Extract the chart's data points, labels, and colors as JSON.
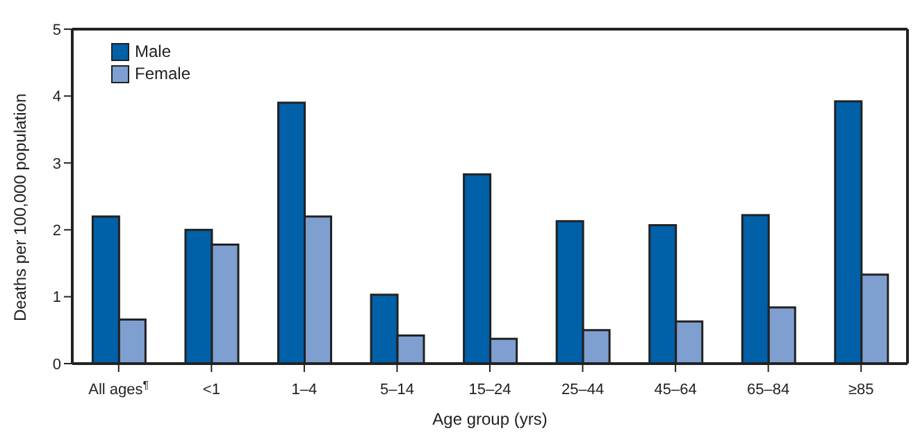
{
  "chart_data": {
    "type": "bar",
    "xlabel": "Age group (yrs)",
    "ylabel": "Deaths per 100,000 population",
    "categories": [
      "All ages$^{¶}$",
      "<1",
      "1–4",
      "5–14",
      "15–24",
      "25–44",
      "45–64",
      "65–84",
      "≥85"
    ],
    "series": [
      {
        "name": "Male",
        "color": "#0060a8",
        "values": [
          2.2,
          2.0,
          3.9,
          1.03,
          2.83,
          2.13,
          2.07,
          2.22,
          3.92
        ]
      },
      {
        "name": "Female",
        "color": "#7f9fd0",
        "values": [
          0.66,
          1.78,
          2.2,
          0.42,
          0.37,
          0.5,
          0.63,
          0.84,
          1.33
        ]
      }
    ],
    "ylim": [
      0,
      5
    ],
    "yticks": [
      0,
      1,
      2,
      3,
      4,
      5
    ],
    "grid": false,
    "legend": "top left"
  }
}
